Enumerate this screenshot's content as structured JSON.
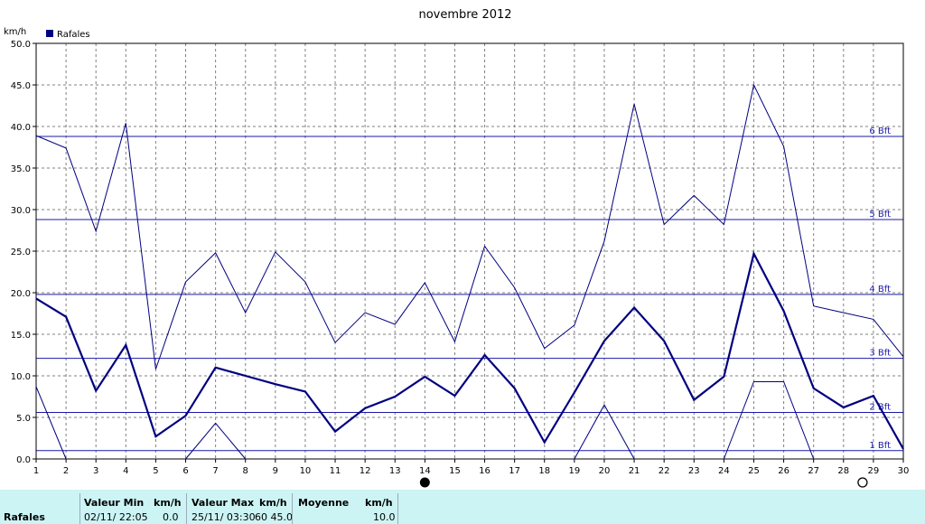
{
  "chart_data": {
    "type": "line",
    "title": "novembre 2012",
    "ylabel": "km/h",
    "ylim": [
      0,
      50
    ],
    "xlim": [
      1,
      30
    ],
    "grid": true,
    "legend": "top-left",
    "x": [
      1,
      2,
      3,
      4,
      5,
      6,
      7,
      8,
      9,
      10,
      11,
      12,
      13,
      14,
      15,
      16,
      17,
      18,
      19,
      20,
      21,
      22,
      23,
      24,
      25,
      26,
      27,
      28,
      29,
      30
    ],
    "x_tick_labels": [
      "1",
      "2",
      "3",
      "4",
      "5",
      "6",
      "7",
      "8",
      "9",
      "10",
      "11",
      "12",
      "13",
      "14",
      "15",
      "16",
      "17",
      "18",
      "19",
      "20",
      "21",
      "22",
      "23",
      "24",
      "25",
      "26",
      "27",
      "28",
      "29",
      "30"
    ],
    "y_ticks": [
      0,
      5,
      10,
      15,
      20,
      25,
      30,
      35,
      40,
      45,
      50
    ],
    "y_tick_labels": [
      "0.0",
      "5.0",
      "10.0",
      "15.0",
      "20.0",
      "25.0",
      "30.0",
      "35.0",
      "40.0",
      "45.0",
      "50.0"
    ],
    "series": [
      {
        "name": "Rafales",
        "role": "mean",
        "color": "#000080",
        "values": [
          19.3,
          17.1,
          8.2,
          13.7,
          2.7,
          5.2,
          11.0,
          10.0,
          9.0,
          8.1,
          3.3,
          6.1,
          7.5,
          9.9,
          7.6,
          12.5,
          8.5,
          2.0,
          8.0,
          14.2,
          18.2,
          14.2,
          7.1,
          9.9,
          24.7,
          17.8,
          8.5,
          6.2,
          7.6,
          1.2
        ]
      },
      {
        "role": "max",
        "color": "#000080",
        "values": [
          38.9,
          37.4,
          27.4,
          40.4,
          10.8,
          21.3,
          24.8,
          17.6,
          24.9,
          21.3,
          14.0,
          17.6,
          16.2,
          21.2,
          14.1,
          25.6,
          20.6,
          13.3,
          16.1,
          26.2,
          42.7,
          28.2,
          31.7,
          28.2,
          45.0,
          37.6,
          18.4,
          17.6,
          16.8,
          12.3
        ]
      },
      {
        "role": "min",
        "color": "#000080",
        "values": [
          8.7,
          0.0,
          null,
          null,
          null,
          0.0,
          4.3,
          0.0,
          null,
          null,
          null,
          null,
          null,
          null,
          null,
          null,
          null,
          null,
          0.0,
          6.5,
          0.0,
          null,
          null,
          0.0,
          9.3,
          9.3,
          0.0,
          null,
          null,
          null
        ]
      }
    ],
    "reference_lines": [
      {
        "label": "1 Bft",
        "value": 1.0
      },
      {
        "label": "2 Bft",
        "value": 5.6
      },
      {
        "label": "3 Bft",
        "value": 12.1
      },
      {
        "label": "4 Bft",
        "value": 19.8
      },
      {
        "label": "5 Bft",
        "value": 28.8
      },
      {
        "label": "6 Bft",
        "value": 38.8
      }
    ],
    "moon_phases": [
      {
        "day": 14,
        "phase": "new"
      },
      {
        "day": 29,
        "phase": "full"
      }
    ]
  },
  "stats_bar": {
    "series_label": "Rafales",
    "min_header": "Valeur Min",
    "max_header": "Valeur Max",
    "avg_header": "Moyenne",
    "unit_header": "km/h",
    "min_time": "02/11/  22:05",
    "min_value": "0.0",
    "max_time": "25/11/  03:30",
    "max_value": "60  45.0",
    "avg_value": "10.0"
  },
  "colors": {
    "line": "#000080",
    "grid": "#808080",
    "background": "#ffffff",
    "stats_bg": "#ccf4f4"
  }
}
